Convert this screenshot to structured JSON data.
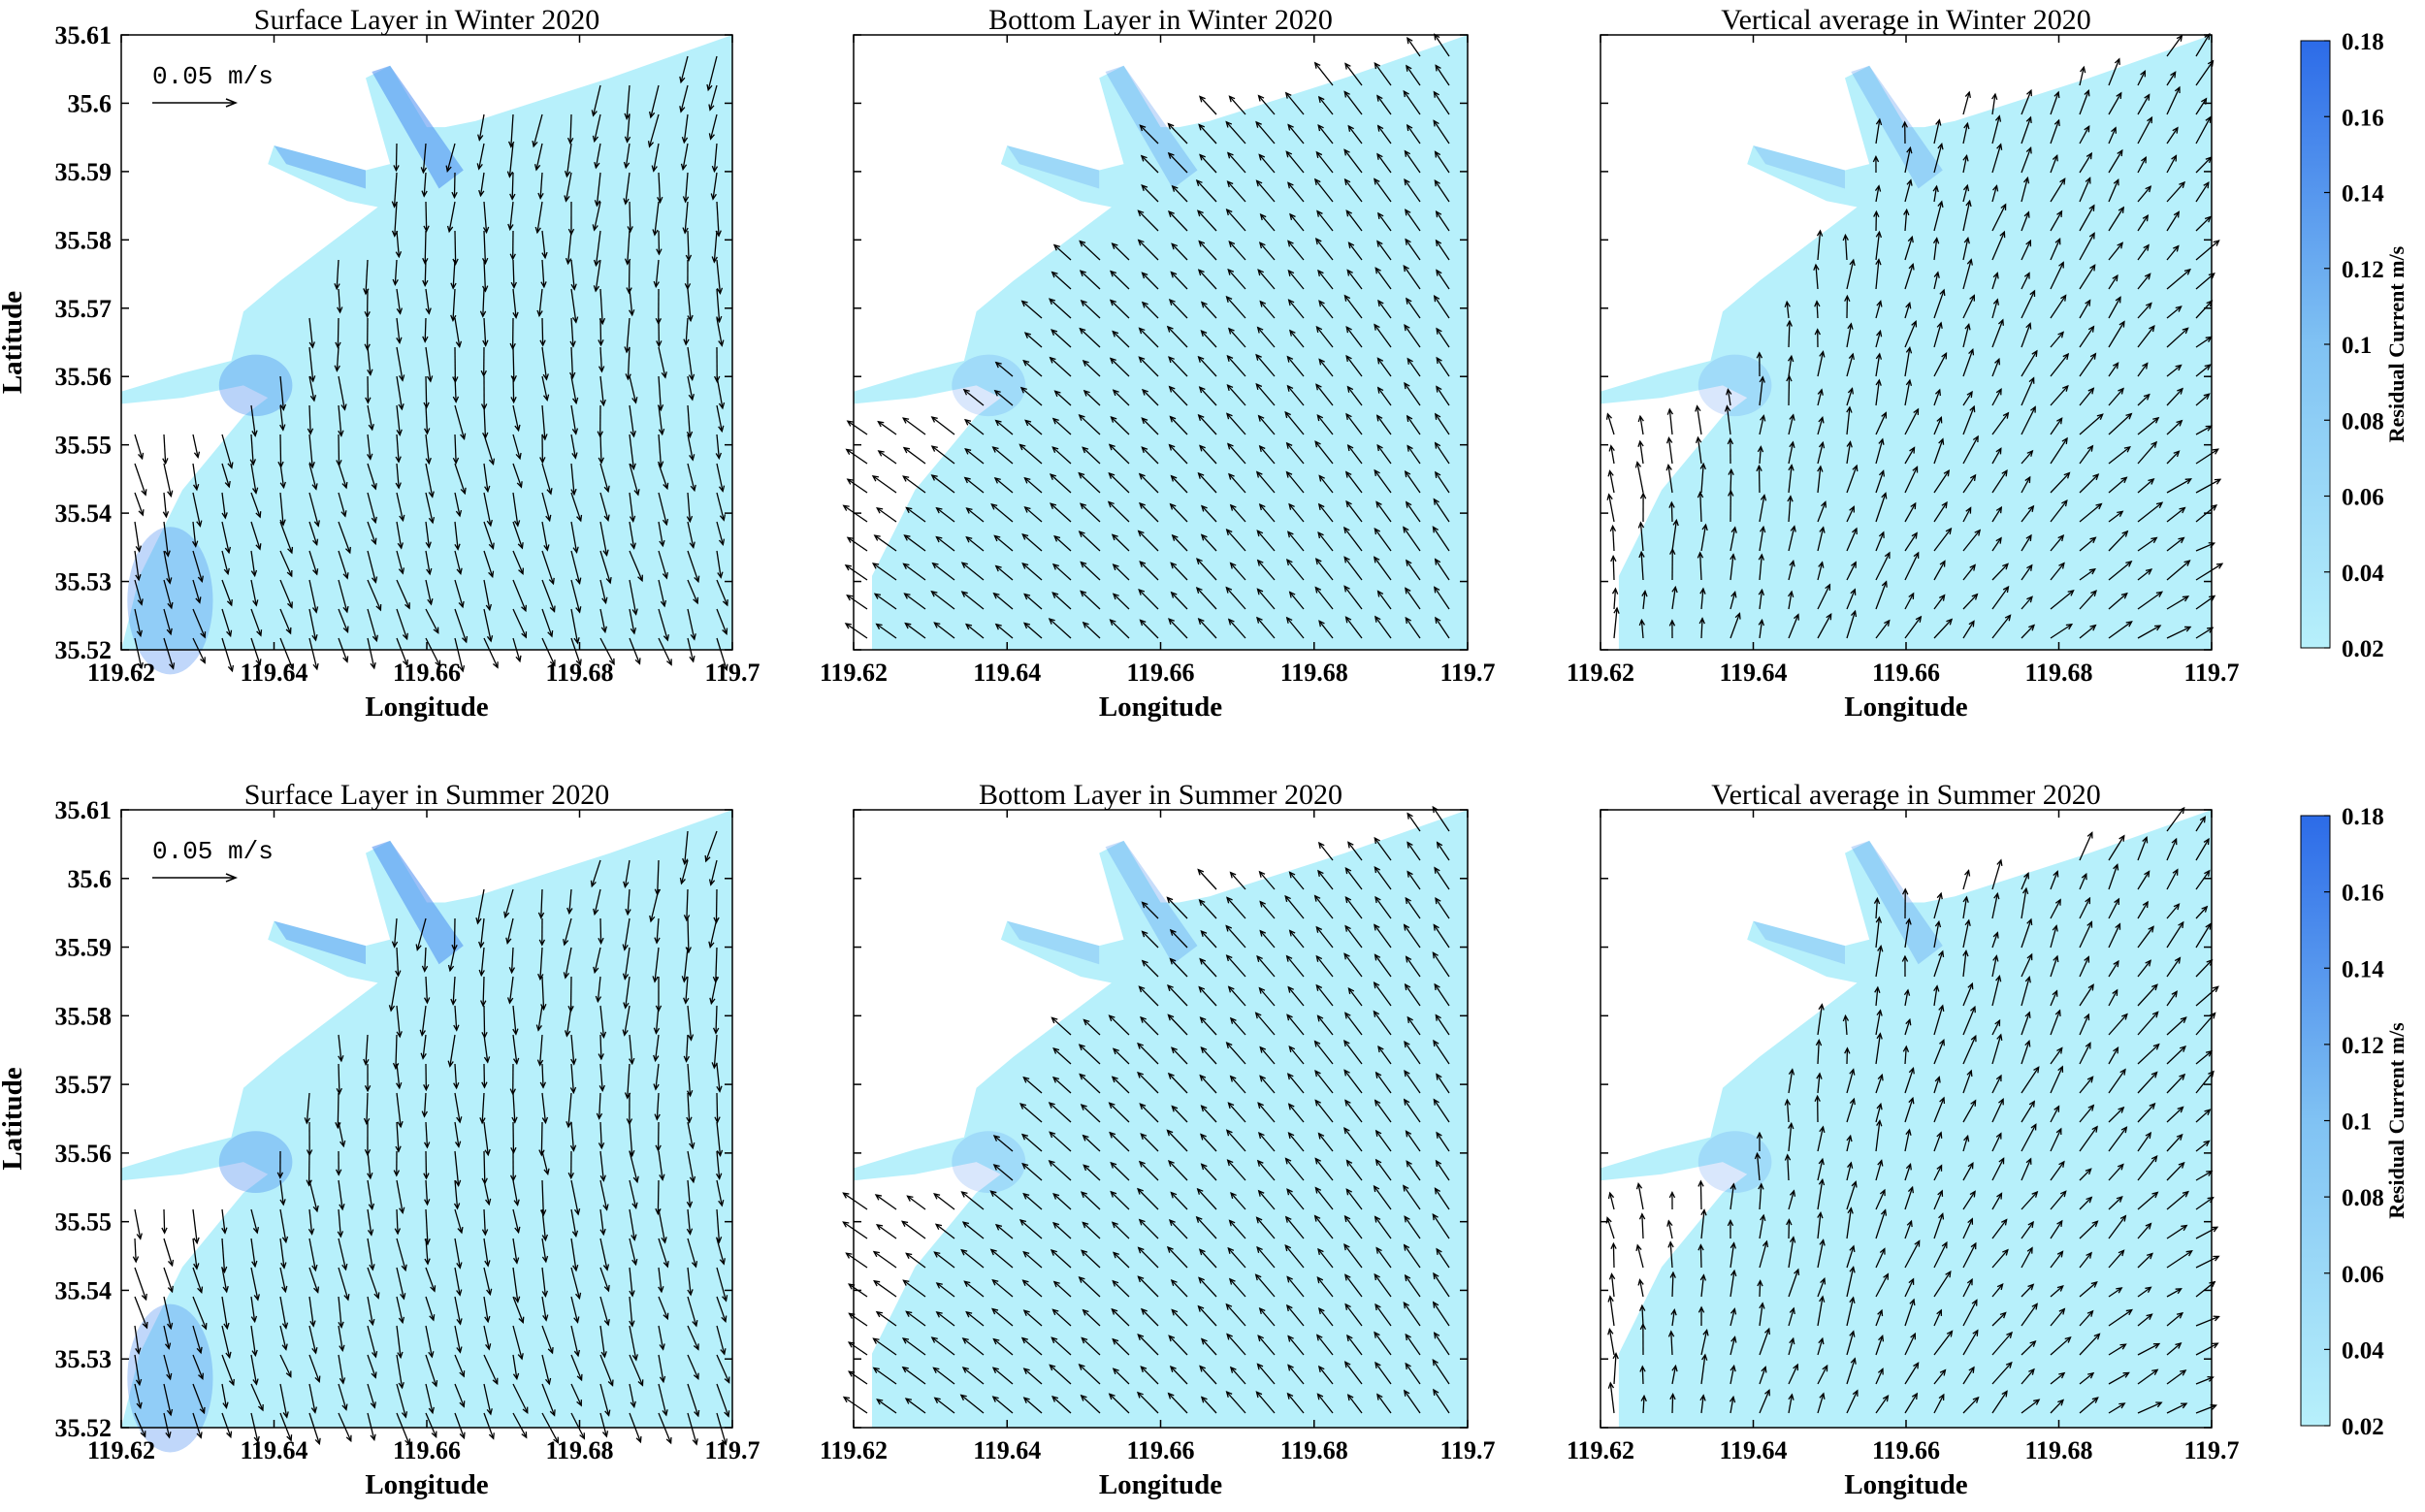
{
  "chart_data": [
    {
      "type": "quiver",
      "title": "Surface Layer in Winter 2020",
      "xlabel": "Longitude",
      "ylabel": "Latitude",
      "xlim": [
        119.62,
        119.7
      ],
      "ylim": [
        35.52,
        35.61
      ],
      "x_ticks": [
        "119.62",
        "119.64",
        "119.66",
        "119.68",
        "119.7"
      ],
      "y_ticks": [
        "35.52",
        "35.53",
        "35.54",
        "35.55",
        "35.56",
        "35.57",
        "35.58",
        "35.59",
        "35.6",
        "35.61"
      ],
      "reference_vector": "0.05 m/s",
      "layer": "surface",
      "season": "winter"
    },
    {
      "type": "quiver",
      "title": "Bottom Layer in Winter 2020",
      "xlabel": "Longitude",
      "ylabel": "",
      "xlim": [
        119.62,
        119.7
      ],
      "ylim": [
        35.52,
        35.61
      ],
      "x_ticks": [
        "119.62",
        "119.64",
        "119.66",
        "119.68",
        "119.7"
      ],
      "layer": "bottom",
      "season": "winter"
    },
    {
      "type": "quiver",
      "title": "Vertical average in Winter 2020",
      "xlabel": "Longitude",
      "ylabel": "",
      "xlim": [
        119.62,
        119.7
      ],
      "ylim": [
        35.52,
        35.61
      ],
      "x_ticks": [
        "119.62",
        "119.64",
        "119.66",
        "119.68",
        "119.7"
      ],
      "layer": "average",
      "season": "winter"
    },
    {
      "type": "quiver",
      "title": "Surface Layer in Summer 2020",
      "xlabel": "Longitude",
      "ylabel": "Latitude",
      "xlim": [
        119.62,
        119.7
      ],
      "ylim": [
        35.52,
        35.61
      ],
      "x_ticks": [
        "119.62",
        "119.64",
        "119.66",
        "119.68",
        "119.7"
      ],
      "y_ticks": [
        "35.52",
        "35.53",
        "35.54",
        "35.55",
        "35.56",
        "35.57",
        "35.58",
        "35.59",
        "35.6",
        "35.61"
      ],
      "reference_vector": "0.05 m/s",
      "layer": "surface",
      "season": "summer"
    },
    {
      "type": "quiver",
      "title": "Bottom Layer in Summer 2020",
      "xlabel": "Longitude",
      "ylabel": "",
      "xlim": [
        119.62,
        119.7
      ],
      "ylim": [
        35.52,
        35.61
      ],
      "x_ticks": [
        "119.62",
        "119.64",
        "119.66",
        "119.68",
        "119.7"
      ],
      "layer": "bottom",
      "season": "summer"
    },
    {
      "type": "quiver",
      "title": "Vertical average in Summer 2020",
      "xlabel": "Longitude",
      "ylabel": "",
      "xlim": [
        119.62,
        119.7
      ],
      "ylim": [
        35.52,
        35.61
      ],
      "x_ticks": [
        "119.62",
        "119.64",
        "119.66",
        "119.68",
        "119.7"
      ],
      "layer": "average",
      "season": "summer"
    }
  ],
  "colorbars": [
    {
      "label": "Residual Current m/s",
      "range": [
        0.02,
        0.18
      ],
      "ticks": [
        "0.02",
        "0.04",
        "0.06",
        "0.08",
        "0.1",
        "0.12",
        "0.14",
        "0.16",
        "0.18"
      ],
      "color_low": "#b7f0fb",
      "color_high": "#2c6be8"
    },
    {
      "label": "Residual Current m/s",
      "range": [
        0.02,
        0.18
      ],
      "ticks": [
        "0.02",
        "0.04",
        "0.06",
        "0.08",
        "0.1",
        "0.12",
        "0.14",
        "0.16",
        "0.18"
      ],
      "color_low": "#b7f0fb",
      "color_high": "#2c6be8"
    }
  ],
  "colors": {
    "water": "#b7f0fb",
    "water_strong": "#4a8df0",
    "arrow": "#000000"
  }
}
